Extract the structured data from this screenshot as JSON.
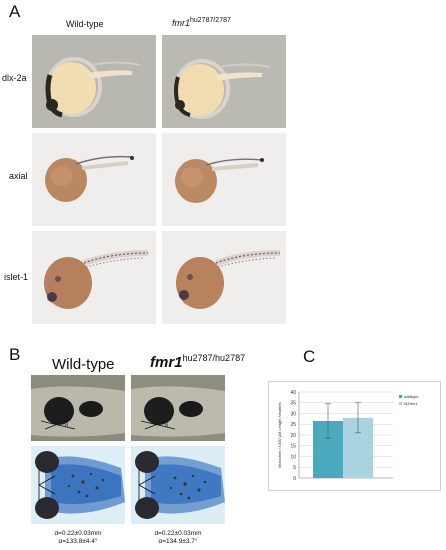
{
  "panelA": {
    "letter": "A",
    "col_wild": "Wild-type",
    "col_mut_base": "fmr1",
    "col_mut_sup": "hu2787/2787",
    "rows": [
      {
        "label": "dlx-2a"
      },
      {
        "label": "axial"
      },
      {
        "label": "islet-1"
      }
    ]
  },
  "panelB": {
    "letter": "B",
    "col_wild": "Wild-type",
    "col_mut_base": "fmr1",
    "col_mut_sup": "hu2787/hu2787",
    "meas_wild_d": "d=0.22±0.03mm",
    "meas_wild_a": "α=133.8±4.4°",
    "meas_mut_d": "d=0.22±0.03mm",
    "meas_mut_a": "α=134.9±3.7°"
  },
  "panelC": {
    "letter": "C"
  },
  "chart_data": {
    "type": "bar",
    "categories": [
      ""
    ],
    "series": [
      {
        "name": "wildtype",
        "values": [
          26.5
        ],
        "error": [
          8
        ],
        "color": "#4aa9bd"
      },
      {
        "name": "MZfmr1",
        "values": [
          28
        ],
        "error": [
          7
        ],
        "color": "#a9d3df"
      }
    ],
    "ylabel": "Branches / 1000 μM Length Neurites",
    "ylim": [
      0,
      40
    ],
    "yticks": [
      0,
      5,
      10,
      15,
      20,
      25,
      30,
      35,
      40
    ],
    "grid": true,
    "legend": "top-right"
  }
}
